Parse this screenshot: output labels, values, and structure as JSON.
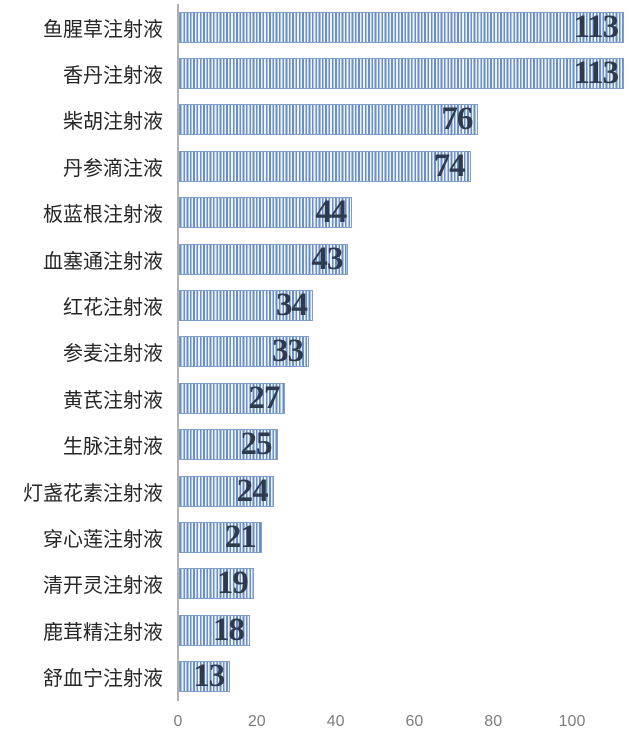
{
  "chart_data": {
    "type": "bar",
    "orientation": "horizontal",
    "title": "",
    "xlabel": "",
    "ylabel": "",
    "categories": [
      "鱼腥草注射液",
      "香丹注射液",
      "柴胡注射液",
      "丹参滴注液",
      "板蓝根注射液",
      "血塞通注射液",
      "红花注射液",
      "参麦注射液",
      "黄芪注射液",
      "生脉注射液",
      "灯盏花素注射液",
      "穿心莲注射液",
      "清开灵注射液",
      "鹿茸精注射液",
      "舒血宁注射液"
    ],
    "values": [
      113,
      113,
      76,
      74,
      44,
      43,
      34,
      33,
      27,
      25,
      24,
      21,
      19,
      18,
      13
    ],
    "data_labels": [
      113,
      113,
      76,
      74,
      44,
      43,
      34,
      33,
      27,
      25,
      24,
      21,
      19,
      18,
      13
    ],
    "x_ticks": [
      0,
      20,
      40,
      60,
      80,
      100
    ],
    "xlim": [
      0,
      115
    ],
    "grid": false,
    "legend": false
  },
  "style": {
    "bar_stripe_color": "#6a8ec6",
    "bar_stripe_background": "#eef3fa",
    "bar_border_color": "#7e9dcd",
    "value_label_color": "#2e3a4d",
    "category_label_color": "#262626",
    "axis_line_color": "#b1b1b1",
    "tick_label_color": "#7d7d7d"
  }
}
